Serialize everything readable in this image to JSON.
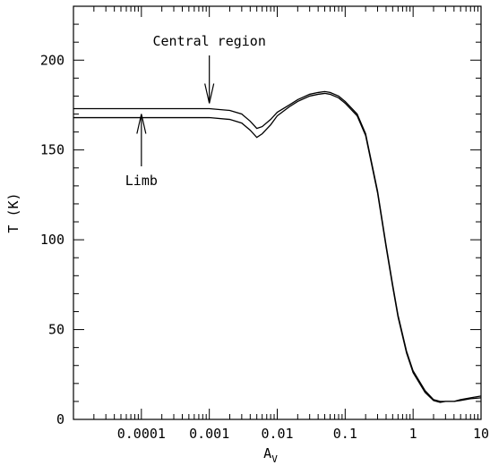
{
  "chart_data": {
    "type": "line",
    "title": "",
    "xlabel": "A",
    "xlabel_subscript": "V",
    "ylabel": "T (K)",
    "xscale": "log",
    "xlim": [
      1e-05,
      10
    ],
    "ylim": [
      0,
      230
    ],
    "grid": false,
    "x_ticks": [
      {
        "value": 0.0001,
        "label": "0.0001"
      },
      {
        "value": 0.001,
        "label": "0.001"
      },
      {
        "value": 0.01,
        "label": "0.01"
      },
      {
        "value": 0.1,
        "label": "0.1"
      },
      {
        "value": 1,
        "label": "1"
      },
      {
        "value": 10,
        "label": "10"
      }
    ],
    "y_ticks": [
      {
        "value": 0,
        "label": "0"
      },
      {
        "value": 50,
        "label": "50"
      },
      {
        "value": 100,
        "label": "100"
      },
      {
        "value": 150,
        "label": "150"
      },
      {
        "value": 200,
        "label": "200"
      }
    ],
    "series": [
      {
        "x": [
          1e-05,
          0.0001,
          0.001,
          0.002,
          0.003,
          0.004,
          0.005,
          0.006,
          0.008,
          0.01,
          0.015,
          0.02,
          0.03,
          0.04,
          0.05,
          0.06,
          0.08,
          0.1,
          0.15,
          0.2,
          0.3,
          0.4,
          0.5,
          0.6,
          0.8,
          1.0,
          1.5,
          2.0,
          2.5,
          3.0,
          4.0,
          5.0,
          7.0,
          10.0
        ],
        "y": [
          173,
          173,
          173,
          172,
          170,
          166,
          162,
          163,
          167,
          171,
          175,
          178,
          181,
          182,
          182.5,
          182,
          180,
          177,
          170,
          159,
          127,
          97,
          75,
          58,
          38,
          27,
          16,
          11,
          10,
          10,
          10,
          11,
          12,
          13
        ]
      },
      {
        "x": [
          1e-05,
          0.0001,
          0.001,
          0.002,
          0.003,
          0.004,
          0.005,
          0.006,
          0.008,
          0.01,
          0.015,
          0.02,
          0.03,
          0.04,
          0.05,
          0.06,
          0.08,
          0.1,
          0.15,
          0.2,
          0.3,
          0.4,
          0.5,
          0.6,
          0.8,
          1.0,
          1.5,
          2.0,
          2.5,
          3.0,
          4.0,
          5.0,
          7.0,
          10.0
        ],
        "y": [
          168,
          168,
          168,
          167,
          165,
          161,
          157,
          159,
          164,
          169,
          174,
          177,
          180,
          181,
          181.5,
          181,
          179,
          176,
          169,
          158,
          126,
          96,
          74,
          57,
          37,
          26,
          15,
          10.5,
          9.5,
          10,
          10,
          10.5,
          11.5,
          12
        ]
      }
    ],
    "annotations": [
      {
        "text": "Central region",
        "x": 0.001,
        "y": 175
      },
      {
        "text": "Limb",
        "x": 0.0001,
        "y": 170
      }
    ]
  }
}
